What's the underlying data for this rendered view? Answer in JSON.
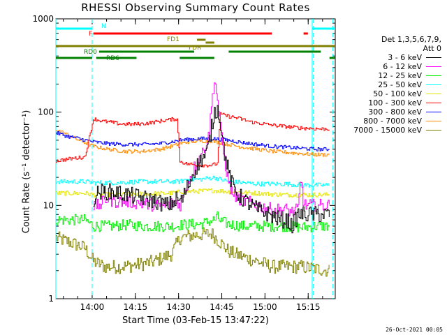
{
  "chart_data": {
    "type": "line",
    "title": "RHESSI Observing Summary Count Rates",
    "xlabel": "Start Time (03-Feb-15 13:47:22)",
    "ylabel": "Count Rate (s⁻¹ detector⁻¹)",
    "y_scale": "log",
    "ylim": [
      1,
      1000
    ],
    "y_ticks": [
      {
        "value": 1,
        "label": "1"
      },
      {
        "value": 10,
        "label": "10"
      },
      {
        "value": 100,
        "label": "100"
      },
      {
        "value": 1000,
        "label": "1000"
      }
    ],
    "x_unit": "minutes after 13:47:22",
    "xlim": [
      0,
      97
    ],
    "x_ticks": [
      {
        "value": 12.6,
        "label": "14:00"
      },
      {
        "value": 27.6,
        "label": "14:15"
      },
      {
        "value": 42.6,
        "label": "14:30"
      },
      {
        "value": 57.6,
        "label": "14:45"
      },
      {
        "value": 72.6,
        "label": "15:00"
      },
      {
        "value": 87.6,
        "label": "15:15"
      }
    ],
    "legend_header": [
      "Det 1,3,5,6,7,9,",
      "Att 0"
    ],
    "series": [
      {
        "name": "3 - 6 keV",
        "color": "#000000",
        "points": [
          [
            13,
            12
          ],
          [
            15,
            14
          ],
          [
            20,
            14
          ],
          [
            25,
            13
          ],
          [
            30,
            12
          ],
          [
            35,
            11
          ],
          [
            39,
            10
          ],
          [
            41,
            11
          ],
          [
            42,
            12
          ],
          [
            43,
            11
          ],
          [
            44,
            12
          ],
          [
            46,
            17
          ],
          [
            48,
            24
          ],
          [
            50,
            30
          ],
          [
            52,
            35
          ],
          [
            53,
            45
          ],
          [
            54,
            70
          ],
          [
            55,
            100
          ],
          [
            56,
            110
          ],
          [
            57,
            80
          ],
          [
            58,
            45
          ],
          [
            59,
            30
          ],
          [
            60,
            22
          ],
          [
            61,
            17
          ],
          [
            63,
            13
          ],
          [
            66,
            11
          ],
          [
            70,
            9
          ],
          [
            74,
            8
          ],
          [
            78,
            7
          ],
          [
            80,
            7
          ],
          [
            82,
            6
          ],
          [
            84,
            8
          ],
          [
            86,
            8
          ],
          [
            90,
            8
          ],
          [
            95,
            8
          ]
        ]
      },
      {
        "name": "6 - 12 keV",
        "color": "#ff00ff",
        "points": [
          [
            13,
            10
          ],
          [
            15,
            10
          ],
          [
            18,
            12
          ],
          [
            20,
            11
          ],
          [
            25,
            11
          ],
          [
            30,
            10.5
          ],
          [
            35,
            10
          ],
          [
            38,
            10
          ],
          [
            42,
            11
          ],
          [
            43,
            10
          ],
          [
            45,
            15
          ],
          [
            47,
            22
          ],
          [
            49,
            30
          ],
          [
            51,
            38
          ],
          [
            53,
            55
          ],
          [
            54,
            120
          ],
          [
            55,
            230
          ],
          [
            56,
            140
          ],
          [
            57,
            70
          ],
          [
            58,
            40
          ],
          [
            59,
            25
          ],
          [
            60,
            17
          ],
          [
            61,
            14
          ],
          [
            63,
            12
          ],
          [
            66,
            11
          ],
          [
            70,
            10
          ],
          [
            75,
            9
          ],
          [
            80,
            9
          ],
          [
            82,
            8.5
          ],
          [
            84,
            9
          ],
          [
            85,
            20
          ],
          [
            86,
            10
          ],
          [
            90,
            10
          ],
          [
            95,
            10
          ]
        ]
      },
      {
        "name": "12 - 25 keV",
        "color": "#00ee00",
        "points": [
          [
            0,
            7
          ],
          [
            5,
            7
          ],
          [
            10,
            7
          ],
          [
            13,
            6
          ],
          [
            15,
            6
          ],
          [
            20,
            6
          ],
          [
            25,
            6.2
          ],
          [
            30,
            6
          ],
          [
            35,
            6
          ],
          [
            40,
            6
          ],
          [
            42,
            6
          ],
          [
            43,
            6.2
          ],
          [
            50,
            6.3
          ],
          [
            55,
            7
          ],
          [
            56,
            7.5
          ],
          [
            57,
            6.8
          ],
          [
            60,
            6.3
          ],
          [
            65,
            6
          ],
          [
            70,
            6
          ],
          [
            75,
            6
          ],
          [
            80,
            6
          ],
          [
            85,
            5.8
          ],
          [
            90,
            6
          ],
          [
            95,
            6
          ]
        ]
      },
      {
        "name": "25 - 50 keV",
        "color": "#00ffff",
        "points": [
          [
            0,
            18
          ],
          [
            10,
            18
          ],
          [
            13,
            17.5
          ],
          [
            20,
            17.5
          ],
          [
            30,
            18
          ],
          [
            40,
            18
          ],
          [
            43,
            18
          ],
          [
            45,
            19
          ],
          [
            50,
            19
          ],
          [
            55,
            20
          ],
          [
            57,
            19
          ],
          [
            60,
            18
          ],
          [
            65,
            17.5
          ],
          [
            70,
            17
          ],
          [
            75,
            17
          ],
          [
            80,
            17
          ],
          [
            85,
            16.5
          ],
          [
            90,
            16.5
          ],
          [
            95,
            16.5
          ]
        ]
      },
      {
        "name": "50 - 100 keV",
        "color": "#e5e500",
        "points": [
          [
            0,
            13.5
          ],
          [
            10,
            13.5
          ],
          [
            13,
            13
          ],
          [
            20,
            13
          ],
          [
            30,
            13.3
          ],
          [
            40,
            13.5
          ],
          [
            43,
            14
          ],
          [
            50,
            14.2
          ],
          [
            55,
            14.5
          ],
          [
            60,
            14
          ],
          [
            65,
            13.8
          ],
          [
            70,
            13.5
          ],
          [
            75,
            13.2
          ],
          [
            80,
            13
          ],
          [
            85,
            13
          ],
          [
            90,
            13
          ],
          [
            95,
            13
          ]
        ]
      },
      {
        "name": "100 - 300 keV",
        "color": "#ff0000",
        "points": [
          [
            0,
            30
          ],
          [
            3,
            31
          ],
          [
            6,
            32
          ],
          [
            10,
            33
          ],
          [
            13,
            85
          ],
          [
            16,
            80
          ],
          [
            19,
            78
          ],
          [
            22,
            75
          ],
          [
            26,
            74
          ],
          [
            30,
            75
          ],
          [
            34,
            78
          ],
          [
            38,
            82
          ],
          [
            42,
            85
          ],
          [
            43,
            30
          ],
          [
            45,
            28
          ],
          [
            50,
            27
          ],
          [
            54,
            27
          ],
          [
            56,
            28
          ],
          [
            57,
            95
          ],
          [
            60,
            90
          ],
          [
            64,
            85
          ],
          [
            68,
            78
          ],
          [
            72,
            75
          ],
          [
            76,
            72
          ],
          [
            80,
            70
          ],
          [
            84,
            68
          ],
          [
            88,
            67
          ],
          [
            92,
            66
          ],
          [
            95,
            66
          ]
        ]
      },
      {
        "name": "300 - 800 keV",
        "color": "#0000ff",
        "points": [
          [
            0,
            60
          ],
          [
            4,
            55
          ],
          [
            8,
            52
          ],
          [
            13,
            48
          ],
          [
            18,
            46
          ],
          [
            24,
            45
          ],
          [
            30,
            45
          ],
          [
            36,
            46
          ],
          [
            40,
            48
          ],
          [
            43,
            50
          ],
          [
            46,
            51
          ],
          [
            50,
            52
          ],
          [
            54,
            52
          ],
          [
            57,
            51
          ],
          [
            60,
            50
          ],
          [
            65,
            47
          ],
          [
            70,
            45
          ],
          [
            75,
            43
          ],
          [
            80,
            42
          ],
          [
            85,
            41
          ],
          [
            90,
            40
          ],
          [
            95,
            40
          ]
        ]
      },
      {
        "name": "800 - 7000 keV",
        "color": "#ff8c00",
        "points": [
          [
            0,
            65
          ],
          [
            4,
            57
          ],
          [
            8,
            50
          ],
          [
            13,
            43
          ],
          [
            18,
            40
          ],
          [
            24,
            38
          ],
          [
            30,
            38
          ],
          [
            36,
            40
          ],
          [
            40,
            43
          ],
          [
            43,
            46
          ],
          [
            46,
            48
          ],
          [
            50,
            49
          ],
          [
            54,
            49
          ],
          [
            57,
            47
          ],
          [
            60,
            45
          ],
          [
            65,
            42
          ],
          [
            70,
            40
          ],
          [
            75,
            38
          ],
          [
            80,
            37
          ],
          [
            85,
            36
          ],
          [
            90,
            35
          ],
          [
            95,
            35
          ]
        ]
      },
      {
        "name": "7000 - 15000 keV",
        "color": "#808000",
        "points": [
          [
            0,
            4.5
          ],
          [
            5,
            4
          ],
          [
            10,
            3.5
          ],
          [
            13,
            2.5
          ],
          [
            17,
            2.2
          ],
          [
            22,
            2.2
          ],
          [
            28,
            2.3
          ],
          [
            34,
            2.5
          ],
          [
            40,
            3
          ],
          [
            43,
            4.5
          ],
          [
            48,
            4.8
          ],
          [
            54,
            5
          ],
          [
            57,
            4
          ],
          [
            60,
            3.2
          ],
          [
            65,
            2.8
          ],
          [
            70,
            2.5
          ],
          [
            75,
            2.2
          ],
          [
            80,
            2.2
          ],
          [
            85,
            2.2
          ],
          [
            90,
            2.1
          ],
          [
            95,
            2
          ]
        ]
      }
    ],
    "state_bars": [
      {
        "label": "N",
        "color": "#00ffff",
        "segments": [
          [
            0,
            12.6
          ],
          [
            89,
            97
          ]
        ]
      },
      {
        "label": "F",
        "color": "#ff0000",
        "segments": [
          [
            13,
            75
          ],
          [
            86,
            87.5
          ]
        ]
      },
      {
        "label": "FD1",
        "color": "#808000",
        "segments": [
          [
            49,
            52
          ]
        ]
      },
      {
        "label": "FDR",
        "color": "#808000",
        "segments": [
          [
            52,
            55
          ]
        ]
      },
      {
        "label": "",
        "color": "#808000",
        "segments": [
          [
            0,
            97
          ]
        ]
      },
      {
        "label": "RD0",
        "color": "#008000",
        "segments": [
          [
            15,
            48
          ],
          [
            60,
            92
          ]
        ]
      },
      {
        "label": "RD6",
        "color": "#008000",
        "segments": [
          [
            0,
            12.6
          ],
          [
            14,
            28
          ],
          [
            43,
            55
          ],
          [
            95,
            97
          ]
        ]
      }
    ],
    "dashed_verticals": [
      12.6,
      89.4,
      96.2
    ],
    "solid_verticals": [
      0,
      89
    ]
  },
  "footer_stamp": "26-Oct-2021 00:05"
}
